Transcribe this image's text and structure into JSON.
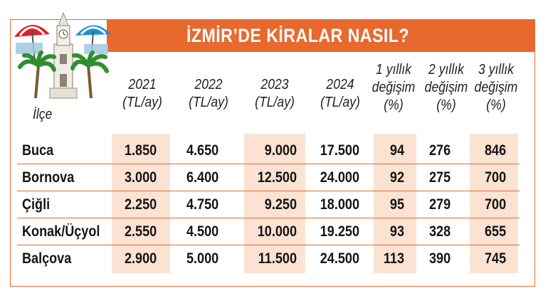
{
  "title": "İZMİR’DE KİRALAR NASIL?",
  "district_header": "İlçe",
  "columns": [
    {
      "lines": [
        "2021",
        "(TL/ay)"
      ]
    },
    {
      "lines": [
        "2022",
        "(TL/ay)"
      ]
    },
    {
      "lines": [
        "2023",
        "(TL/ay)"
      ]
    },
    {
      "lines": [
        "2024",
        "(TL/ay)"
      ]
    },
    {
      "lines": [
        "1 yıllık",
        "değişim",
        "(%)"
      ]
    },
    {
      "lines": [
        "2 yıllık",
        "değişim",
        "(%)"
      ]
    },
    {
      "lines": [
        "3 yıllık",
        "değişim",
        "(%)"
      ]
    }
  ],
  "rows": [
    {
      "district": "Buca",
      "values": [
        "1.850",
        "4.650",
        "9.000",
        "17.500",
        "94",
        "276",
        "846"
      ]
    },
    {
      "district": "Bornova",
      "values": [
        "3.000",
        "6.400",
        "12.500",
        "24.000",
        "92",
        "275",
        "700"
      ]
    },
    {
      "district": "Çiğli",
      "values": [
        "2.250",
        "4.750",
        "9.250",
        "18.000",
        "95",
        "279",
        "700"
      ]
    },
    {
      "district": "Konak/Üçyol",
      "values": [
        "2.550",
        "4.500",
        "10.000",
        "19.250",
        "93",
        "328",
        "655"
      ]
    },
    {
      "district": "Balçova",
      "values": [
        "2.900",
        "5.000",
        "11.500",
        "24.500",
        "113",
        "390",
        "745"
      ]
    }
  ],
  "colors": {
    "accent": "#e8692d",
    "shade": "#fbe2d2"
  },
  "icons": [
    "clock-tower-icon",
    "palm-tree-icon",
    "beach-umbrella-icon"
  ]
}
